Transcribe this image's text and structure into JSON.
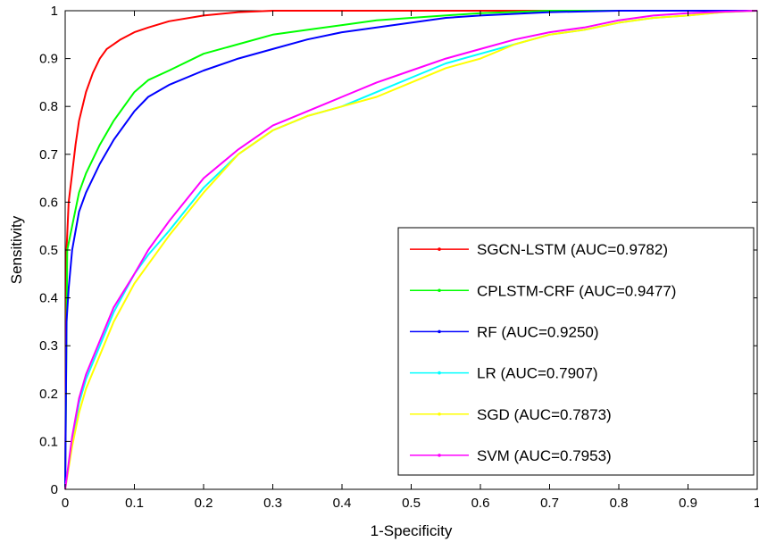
{
  "chart_data": {
    "type": "line",
    "title": "",
    "xlabel": "1-Specificity",
    "ylabel": "Sensitivity",
    "xlim": [
      0,
      1
    ],
    "ylim": [
      0,
      1
    ],
    "xticks": [
      "0",
      "0.1",
      "0.2",
      "0.3",
      "0.4",
      "0.5",
      "0.6",
      "0.7",
      "0.8",
      "0.9",
      "1"
    ],
    "yticks": [
      "0",
      "0.1",
      "0.2",
      "0.3",
      "0.4",
      "0.5",
      "0.6",
      "0.7",
      "0.8",
      "0.9",
      "1"
    ],
    "grid": false,
    "legend_position": "lower-right",
    "series": [
      {
        "name": "SGCN-LSTM (AUC=0.9782)",
        "color": "#ff0000",
        "x": [
          0,
          0.002,
          0.005,
          0.01,
          0.015,
          0.02,
          0.03,
          0.04,
          0.05,
          0.06,
          0.08,
          0.1,
          0.12,
          0.15,
          0.2,
          0.25,
          0.3,
          0.4,
          1
        ],
        "y": [
          0,
          0.5,
          0.6,
          0.66,
          0.72,
          0.77,
          0.83,
          0.87,
          0.9,
          0.92,
          0.94,
          0.955,
          0.965,
          0.978,
          0.99,
          0.997,
          1,
          1,
          1
        ]
      },
      {
        "name": "CPLSTM-CRF (AUC=0.9477)",
        "color": "#00ff00",
        "x": [
          0,
          0.003,
          0.01,
          0.02,
          0.03,
          0.05,
          0.07,
          0.1,
          0.12,
          0.15,
          0.2,
          0.25,
          0.3,
          0.35,
          0.4,
          0.45,
          0.5,
          0.6,
          0.7,
          0.8,
          1
        ],
        "y": [
          0,
          0.5,
          0.55,
          0.62,
          0.66,
          0.72,
          0.77,
          0.83,
          0.855,
          0.875,
          0.91,
          0.93,
          0.95,
          0.96,
          0.97,
          0.98,
          0.985,
          0.995,
          1,
          1,
          1
        ]
      },
      {
        "name": "RF (AUC=0.9250)",
        "color": "#0000ff",
        "x": [
          0,
          0.002,
          0.005,
          0.01,
          0.02,
          0.03,
          0.05,
          0.07,
          0.1,
          0.12,
          0.15,
          0.2,
          0.25,
          0.3,
          0.35,
          0.4,
          0.45,
          0.5,
          0.55,
          0.6,
          0.7,
          0.8,
          1
        ],
        "y": [
          0,
          0.35,
          0.42,
          0.5,
          0.58,
          0.62,
          0.68,
          0.73,
          0.79,
          0.82,
          0.845,
          0.875,
          0.9,
          0.92,
          0.94,
          0.955,
          0.965,
          0.975,
          0.985,
          0.99,
          0.997,
          1,
          1
        ]
      },
      {
        "name": "LR (AUC=0.7907)",
        "color": "#00ffff",
        "x": [
          0,
          0.01,
          0.02,
          0.03,
          0.05,
          0.07,
          0.1,
          0.12,
          0.15,
          0.2,
          0.25,
          0.3,
          0.35,
          0.4,
          0.45,
          0.5,
          0.55,
          0.6,
          0.65,
          0.7,
          0.75,
          0.8,
          0.85,
          0.9,
          0.95,
          1
        ],
        "y": [
          0,
          0.1,
          0.18,
          0.23,
          0.3,
          0.37,
          0.45,
          0.49,
          0.54,
          0.63,
          0.7,
          0.75,
          0.78,
          0.8,
          0.83,
          0.86,
          0.89,
          0.91,
          0.93,
          0.95,
          0.96,
          0.975,
          0.985,
          0.99,
          0.997,
          1
        ]
      },
      {
        "name": "SGD (AUC=0.7873)",
        "color": "#ffff00",
        "x": [
          0,
          0.01,
          0.02,
          0.03,
          0.05,
          0.07,
          0.1,
          0.12,
          0.15,
          0.2,
          0.25,
          0.3,
          0.35,
          0.4,
          0.45,
          0.5,
          0.55,
          0.6,
          0.65,
          0.7,
          0.75,
          0.8,
          0.85,
          0.9,
          0.95,
          1
        ],
        "y": [
          0,
          0.09,
          0.16,
          0.21,
          0.28,
          0.35,
          0.43,
          0.47,
          0.53,
          0.62,
          0.7,
          0.75,
          0.78,
          0.8,
          0.82,
          0.85,
          0.88,
          0.9,
          0.93,
          0.95,
          0.96,
          0.975,
          0.985,
          0.99,
          0.997,
          1
        ]
      },
      {
        "name": "SVM (AUC=0.7953)",
        "color": "#ff00ff",
        "x": [
          0,
          0.01,
          0.02,
          0.03,
          0.05,
          0.07,
          0.1,
          0.12,
          0.15,
          0.2,
          0.25,
          0.3,
          0.35,
          0.4,
          0.45,
          0.5,
          0.55,
          0.6,
          0.65,
          0.7,
          0.75,
          0.8,
          0.85,
          0.9,
          0.95,
          1
        ],
        "y": [
          0,
          0.11,
          0.19,
          0.24,
          0.31,
          0.38,
          0.45,
          0.5,
          0.56,
          0.65,
          0.71,
          0.76,
          0.79,
          0.82,
          0.85,
          0.875,
          0.9,
          0.92,
          0.94,
          0.955,
          0.965,
          0.98,
          0.99,
          0.995,
          0.998,
          1
        ]
      }
    ]
  }
}
